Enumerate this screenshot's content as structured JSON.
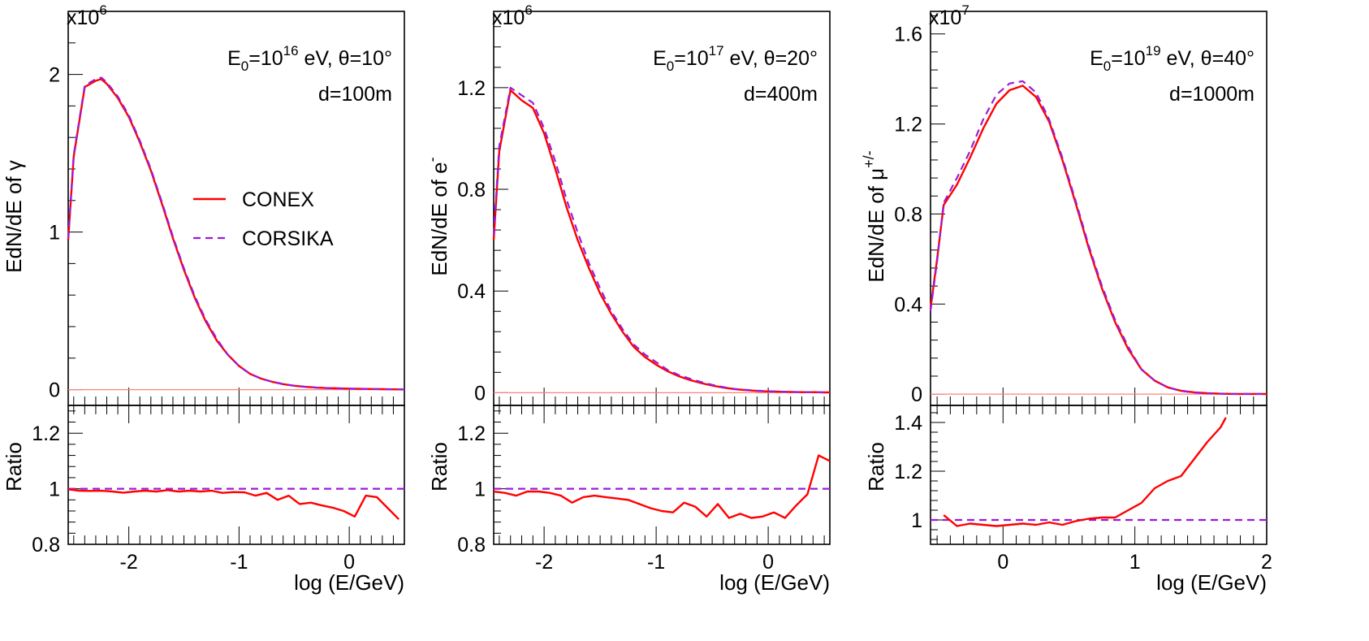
{
  "colors": {
    "conex": "#ff0000",
    "corsika": "#9b1cd8",
    "zero_line": "#ff8080",
    "frame": "#000000"
  },
  "legend": {
    "conex": "CONEX",
    "corsika": "CORSIKA"
  },
  "chart_data": [
    {
      "type": "line",
      "title": "",
      "annotation": {
        "e0_base": "E",
        "e0_sub": "0",
        "e0_eq": "=10",
        "e0_exp": "16",
        "e0_rest": " eV, θ=10°",
        "dist": "d=100m"
      },
      "xlabel": "log (E/GeV)",
      "ylabel": {
        "main": "EdN/dE of ",
        "particle": "γ",
        "particle_sup": ""
      },
      "ylabel_ratio": "Ratio",
      "y_multiplier": {
        "base": "x10",
        "exp": "6"
      },
      "xlim": [
        -2.55,
        0.5
      ],
      "ylim": [
        -0.1,
        2.4
      ],
      "ratio_ylim": [
        0.8,
        1.3
      ],
      "xticks": [
        -2,
        -1,
        0
      ],
      "xtick_labels": [
        "-2",
        "-1",
        "0"
      ],
      "yticks": [
        0,
        1,
        2
      ],
      "ytick_labels": [
        "0",
        "1",
        "2"
      ],
      "ratio_yticks": [
        0.8,
        1,
        1.2
      ],
      "ratio_ytick_labels": [
        "0.8",
        "1",
        "1.2"
      ],
      "legend_shown": true,
      "series": [
        {
          "name": "CONEX",
          "style": "solid",
          "x": [
            -2.55,
            -2.5,
            -2.4,
            -2.3,
            -2.25,
            -2.2,
            -2.1,
            -2.0,
            -1.9,
            -1.8,
            -1.7,
            -1.6,
            -1.5,
            -1.4,
            -1.3,
            -1.2,
            -1.1,
            -1.0,
            -0.9,
            -0.8,
            -0.7,
            -0.6,
            -0.5,
            -0.4,
            -0.3,
            -0.2,
            -0.1,
            0.0,
            0.1,
            0.2,
            0.3,
            0.4,
            0.5
          ],
          "y": [
            0.95,
            1.48,
            1.92,
            1.96,
            1.97,
            1.94,
            1.85,
            1.73,
            1.57,
            1.39,
            1.18,
            0.96,
            0.76,
            0.58,
            0.43,
            0.31,
            0.22,
            0.15,
            0.1,
            0.07,
            0.05,
            0.035,
            0.025,
            0.018,
            0.013,
            0.01,
            0.008,
            0.006,
            0.005,
            0.004,
            0.003,
            0.002,
            0.001
          ]
        },
        {
          "name": "CORSIKA",
          "style": "dashed",
          "x": [
            -2.55,
            -2.5,
            -2.4,
            -2.3,
            -2.25,
            -2.2,
            -2.1,
            -2.0,
            -1.9,
            -1.8,
            -1.7,
            -1.6,
            -1.5,
            -1.4,
            -1.3,
            -1.2,
            -1.1,
            -1.0,
            -0.9,
            -0.8,
            -0.7,
            -0.6,
            -0.5,
            -0.4,
            -0.3,
            -0.2,
            -0.1,
            0.0,
            0.1,
            0.2,
            0.3,
            0.4,
            0.5
          ],
          "y": [
            0.96,
            1.49,
            1.93,
            1.97,
            1.98,
            1.95,
            1.86,
            1.74,
            1.58,
            1.4,
            1.19,
            0.97,
            0.77,
            0.59,
            0.44,
            0.32,
            0.22,
            0.15,
            0.1,
            0.07,
            0.05,
            0.035,
            0.025,
            0.018,
            0.013,
            0.01,
            0.008,
            0.006,
            0.005,
            0.004,
            0.003,
            0.002,
            0.001
          ]
        }
      ],
      "ratio": {
        "x": [
          -2.55,
          -2.45,
          -2.35,
          -2.25,
          -2.15,
          -2.05,
          -1.95,
          -1.85,
          -1.75,
          -1.65,
          -1.55,
          -1.45,
          -1.35,
          -1.25,
          -1.15,
          -1.05,
          -0.95,
          -0.85,
          -0.75,
          -0.65,
          -0.55,
          -0.45,
          -0.35,
          -0.25,
          -0.15,
          -0.05,
          0.05,
          0.15,
          0.25,
          0.35,
          0.45
        ],
        "y": [
          0.998,
          0.993,
          0.992,
          0.993,
          0.99,
          0.986,
          0.99,
          0.993,
          0.99,
          0.995,
          0.99,
          0.993,
          0.99,
          0.993,
          0.985,
          0.988,
          0.987,
          0.975,
          0.985,
          0.96,
          0.975,
          0.945,
          0.95,
          0.94,
          0.932,
          0.92,
          0.9,
          0.975,
          0.97,
          0.93,
          0.89
        ],
        "reference": 1
      }
    },
    {
      "type": "line",
      "title": "",
      "annotation": {
        "e0_base": "E",
        "e0_sub": "0",
        "e0_eq": "=10",
        "e0_exp": "17",
        "e0_rest": " eV, θ=20°",
        "dist": "d=400m"
      },
      "xlabel": "log (E/GeV)",
      "ylabel": {
        "main": "EdN/dE of ",
        "particle": "e",
        "particle_sup": "-"
      },
      "ylabel_ratio": "Ratio",
      "y_multiplier": {
        "base": "x10",
        "exp": "6"
      },
      "xlim": [
        -2.45,
        0.55
      ],
      "ylim": [
        -0.05,
        1.5
      ],
      "ratio_ylim": [
        0.8,
        1.3
      ],
      "xticks": [
        -2,
        -1,
        0
      ],
      "xtick_labels": [
        "-2",
        "-1",
        "0"
      ],
      "yticks": [
        0,
        0.4,
        0.8,
        1.2
      ],
      "ytick_labels": [
        "0",
        "0.4",
        "0.8",
        "1.2"
      ],
      "ratio_yticks": [
        0.8,
        1,
        1.2
      ],
      "ratio_ytick_labels": [
        "0.8",
        "1",
        "1.2"
      ],
      "legend_shown": false,
      "series": [
        {
          "name": "CONEX",
          "style": "solid",
          "x": [
            -2.45,
            -2.4,
            -2.3,
            -2.2,
            -2.1,
            -2.0,
            -1.9,
            -1.8,
            -1.7,
            -1.6,
            -1.5,
            -1.4,
            -1.3,
            -1.2,
            -1.1,
            -1.0,
            -0.9,
            -0.8,
            -0.7,
            -0.6,
            -0.5,
            -0.4,
            -0.3,
            -0.2,
            -0.1,
            0.0,
            0.1,
            0.2,
            0.3,
            0.4,
            0.5,
            0.55
          ],
          "y": [
            0.6,
            0.95,
            1.19,
            1.15,
            1.12,
            1.02,
            0.88,
            0.73,
            0.6,
            0.49,
            0.39,
            0.31,
            0.24,
            0.18,
            0.14,
            0.11,
            0.085,
            0.065,
            0.05,
            0.038,
            0.028,
            0.02,
            0.014,
            0.01,
            0.007,
            0.005,
            0.004,
            0.003,
            0.002,
            0.002,
            0.001,
            0.001
          ]
        },
        {
          "name": "CORSIKA",
          "style": "dashed",
          "x": [
            -2.45,
            -2.4,
            -2.3,
            -2.2,
            -2.1,
            -2.0,
            -1.9,
            -1.8,
            -1.7,
            -1.6,
            -1.5,
            -1.4,
            -1.3,
            -1.2,
            -1.1,
            -1.0,
            -0.9,
            -0.8,
            -0.7,
            -0.6,
            -0.5,
            -0.4,
            -0.3,
            -0.2,
            -0.1,
            0.0,
            0.1,
            0.2,
            0.3,
            0.4,
            0.5,
            0.55
          ],
          "y": [
            0.62,
            0.97,
            1.2,
            1.17,
            1.14,
            1.04,
            0.91,
            0.76,
            0.63,
            0.51,
            0.41,
            0.32,
            0.25,
            0.19,
            0.15,
            0.12,
            0.09,
            0.07,
            0.055,
            0.042,
            0.031,
            0.022,
            0.015,
            0.011,
            0.008,
            0.006,
            0.004,
            0.003,
            0.002,
            0.002,
            0.001,
            0.001
          ]
        }
      ],
      "ratio": {
        "x": [
          -2.45,
          -2.35,
          -2.25,
          -2.15,
          -2.05,
          -1.95,
          -1.85,
          -1.75,
          -1.65,
          -1.55,
          -1.45,
          -1.35,
          -1.25,
          -1.15,
          -1.05,
          -0.95,
          -0.85,
          -0.75,
          -0.65,
          -0.55,
          -0.45,
          -0.35,
          -0.25,
          -0.15,
          -0.05,
          0.05,
          0.15,
          0.25,
          0.35,
          0.45,
          0.55
        ],
        "y": [
          0.99,
          0.985,
          0.975,
          0.99,
          0.99,
          0.985,
          0.975,
          0.95,
          0.97,
          0.975,
          0.97,
          0.965,
          0.96,
          0.945,
          0.93,
          0.92,
          0.915,
          0.95,
          0.935,
          0.9,
          0.945,
          0.895,
          0.91,
          0.895,
          0.9,
          0.915,
          0.895,
          0.94,
          0.98,
          1.12,
          1.1
        ],
        "reference": 1
      }
    },
    {
      "type": "line",
      "title": "",
      "annotation": {
        "e0_base": "E",
        "e0_sub": "0",
        "e0_eq": "=10",
        "e0_exp": "19",
        "e0_rest": " eV, θ=40°",
        "dist": "d=1000m"
      },
      "xlabel": "log (E/GeV)",
      "ylabel": {
        "main": "EdN/dE of ",
        "particle": "μ",
        "particle_sup": "+/-"
      },
      "ylabel_ratio": "Ratio",
      "y_multiplier": {
        "base": "x10",
        "exp": "7"
      },
      "xlim": [
        -0.55,
        2.0
      ],
      "ylim": [
        -0.05,
        1.7
      ],
      "ratio_ylim": [
        0.9,
        1.47
      ],
      "xticks": [
        0,
        1,
        2
      ],
      "xtick_labels": [
        "0",
        "1",
        "2"
      ],
      "yticks": [
        0,
        0.4,
        0.8,
        1.2,
        1.6
      ],
      "ytick_labels": [
        "0",
        "0.4",
        "0.8",
        "1.2",
        "1.6"
      ],
      "ratio_yticks": [
        1,
        1.2,
        1.4
      ],
      "ratio_ytick_labels": [
        "1",
        "1.2",
        "1.4"
      ],
      "legend_shown": false,
      "series": [
        {
          "name": "CONEX",
          "style": "solid",
          "x": [
            -0.55,
            -0.5,
            -0.45,
            -0.35,
            -0.25,
            -0.15,
            -0.05,
            0.05,
            0.15,
            0.25,
            0.35,
            0.45,
            0.55,
            0.65,
            0.75,
            0.85,
            0.95,
            1.05,
            1.15,
            1.25,
            1.35,
            1.45,
            1.55,
            1.65,
            1.75,
            1.85,
            1.95,
            2.0
          ],
          "y": [
            0.38,
            0.6,
            0.84,
            0.93,
            1.05,
            1.18,
            1.29,
            1.35,
            1.37,
            1.32,
            1.21,
            1.04,
            0.85,
            0.65,
            0.47,
            0.32,
            0.2,
            0.11,
            0.06,
            0.03,
            0.015,
            0.008,
            0.004,
            0.002,
            0.001,
            0.001,
            0.001,
            0.001
          ]
        },
        {
          "name": "CORSIKA",
          "style": "dashed",
          "x": [
            -0.55,
            -0.5,
            -0.45,
            -0.35,
            -0.25,
            -0.15,
            -0.05,
            0.05,
            0.15,
            0.25,
            0.35,
            0.45,
            0.55,
            0.65,
            0.75,
            0.85,
            0.95,
            1.05,
            1.15,
            1.25,
            1.35,
            1.45,
            1.55,
            1.65,
            1.75,
            1.85,
            1.95,
            2.0
          ],
          "y": [
            0.37,
            0.59,
            0.85,
            0.96,
            1.08,
            1.22,
            1.33,
            1.38,
            1.39,
            1.34,
            1.22,
            1.05,
            0.86,
            0.66,
            0.48,
            0.33,
            0.21,
            0.11,
            0.06,
            0.03,
            0.014,
            0.007,
            0.003,
            0.002,
            0.001,
            0.001,
            0.001,
            0.001
          ]
        }
      ],
      "ratio": {
        "x": [
          -0.45,
          -0.35,
          -0.25,
          -0.15,
          -0.05,
          0.05,
          0.15,
          0.25,
          0.35,
          0.45,
          0.55,
          0.65,
          0.75,
          0.85,
          0.95,
          1.05,
          1.15,
          1.25,
          1.35,
          1.45,
          1.55,
          1.65,
          1.69
        ],
        "y": [
          1.02,
          0.975,
          0.985,
          0.98,
          0.975,
          0.98,
          0.985,
          0.98,
          0.99,
          0.98,
          0.995,
          1.005,
          1.01,
          1.01,
          1.04,
          1.07,
          1.13,
          1.16,
          1.18,
          1.25,
          1.32,
          1.38,
          1.42
        ],
        "reference": 1
      }
    }
  ]
}
